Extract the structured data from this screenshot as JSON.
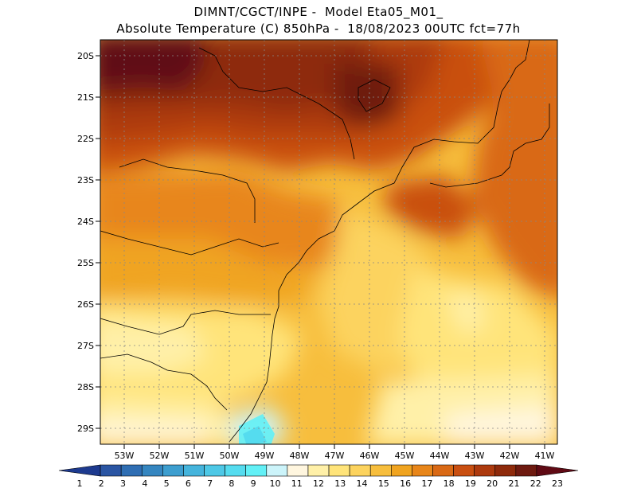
{
  "title": {
    "line1": "DIMNT/CGCT/INPE -  Model Eta05_M01_",
    "line2": "Absolute Temperature (C) 850hPa -  18/08/2023 00UTC fct=77h"
  },
  "map": {
    "lat_labels": [
      "20S",
      "21S",
      "22S",
      "23S",
      "24S",
      "25S",
      "26S",
      "27S",
      "28S",
      "29S"
    ],
    "lon_labels": [
      "53W",
      "52W",
      "51W",
      "50W",
      "49W",
      "48W",
      "47W",
      "46W",
      "45W",
      "44W",
      "43W",
      "42W",
      "41W"
    ],
    "lat_range": [
      -29.4,
      -19.8
    ],
    "lon_range": [
      -53.6,
      -40.4
    ]
  },
  "colorbar": {
    "labels": [
      "1",
      "2",
      "3",
      "4",
      "5",
      "6",
      "7",
      "8",
      "9",
      "10",
      "11",
      "12",
      "13",
      "14",
      "15",
      "16",
      "17",
      "18",
      "19",
      "20",
      "21",
      "22",
      "23"
    ],
    "colors": [
      "#1d3a8f",
      "#2a55a3",
      "#2f6eb3",
      "#3586c0",
      "#3d9ecf",
      "#45b4dc",
      "#4ec8e6",
      "#55dcef",
      "#62f0f6",
      "#ccf4fa",
      "#fff6df",
      "#fff0a8",
      "#ffe47a",
      "#fcd35e",
      "#f7be3d",
      "#f0a420",
      "#e8861a",
      "#d96915",
      "#c94f11",
      "#ad3a0e",
      "#8e2a0b",
      "#6e1a10",
      "#600a14"
    ]
  },
  "temperature_field": {
    "units": "C",
    "level": "850hPa",
    "regions": [
      {
        "area": "northwest",
        "value": 23
      },
      {
        "area": "north-central",
        "value": 22
      },
      {
        "area": "northeast coast",
        "value": 18
      },
      {
        "area": "central",
        "value": 17
      },
      {
        "area": "east",
        "value": 16
      },
      {
        "area": "south-central",
        "value": 13
      },
      {
        "area": "southwest",
        "value": 12
      },
      {
        "area": "south coast",
        "value": 9
      }
    ]
  }
}
